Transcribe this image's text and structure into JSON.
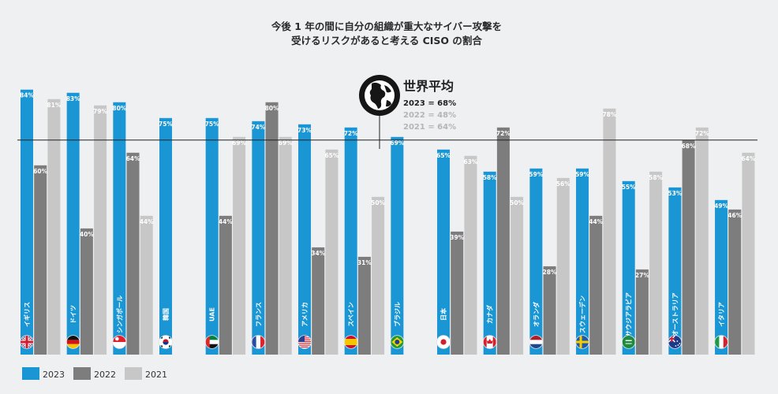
{
  "title_lines": [
    "今後 1 年の間に自分の組織が重大なサイバー攻撃を",
    "受けるリスクがあると考える CISO の割合"
  ],
  "colors": {
    "2023": "#1a96d4",
    "2022": "#7d7d7d",
    "2021": "#c7c7c7",
    "reference_line": "#222222"
  },
  "world_average": {
    "title": "世界平均",
    "icon": "globe-icon",
    "lines": [
      {
        "label": "2023 = 68%",
        "year": "2023"
      },
      {
        "label": "2022 = 48%",
        "year": "2022"
      },
      {
        "label": "2021 = 64%",
        "year": "2021"
      }
    ]
  },
  "legend": [
    {
      "label": "2023",
      "year": "2023"
    },
    {
      "label": "2022",
      "year": "2022"
    },
    {
      "label": "2021",
      "year": "2021"
    }
  ],
  "chart_data": {
    "type": "bar",
    "title": "今後 1 年の間に自分の組織が重大なサイバー攻撃を受けるリスクがあると考える CISO の割合",
    "ylim": [
      0,
      100
    ],
    "reference_value": 68,
    "categories": [
      "イギリス",
      "ドイツ",
      "シンガポール",
      "韓国",
      "UAE",
      "フランス",
      "アメリカ",
      "スペイン",
      "ブラジル",
      "日本",
      "カナダ",
      "オランダ",
      "スウェーデン",
      "サウジアラビア",
      "オーストラリア",
      "イタリア"
    ],
    "flags": [
      "uk-flag",
      "germany-flag",
      "singapore-flag",
      "korea-flag",
      "uae-flag",
      "france-flag",
      "usa-flag",
      "spain-flag",
      "brazil-flag",
      "japan-flag",
      "canada-flag",
      "netherlands-flag",
      "sweden-flag",
      "saudi-arabia-flag",
      "australia-flag",
      "italy-flag"
    ],
    "series": [
      {
        "name": "2023",
        "values": [
          84,
          83,
          80,
          75,
          75,
          74,
          73,
          72,
          69,
          65,
          58,
          59,
          59,
          55,
          53,
          49
        ]
      },
      {
        "name": "2022",
        "values": [
          60,
          40,
          64,
          null,
          44,
          80,
          34,
          31,
          null,
          39,
          72,
          28,
          44,
          27,
          68,
          46
        ]
      },
      {
        "name": "2021",
        "values": [
          81,
          79,
          44,
          null,
          69,
          69,
          65,
          50,
          null,
          63,
          50,
          56,
          78,
          58,
          72,
          64
        ]
      }
    ]
  }
}
